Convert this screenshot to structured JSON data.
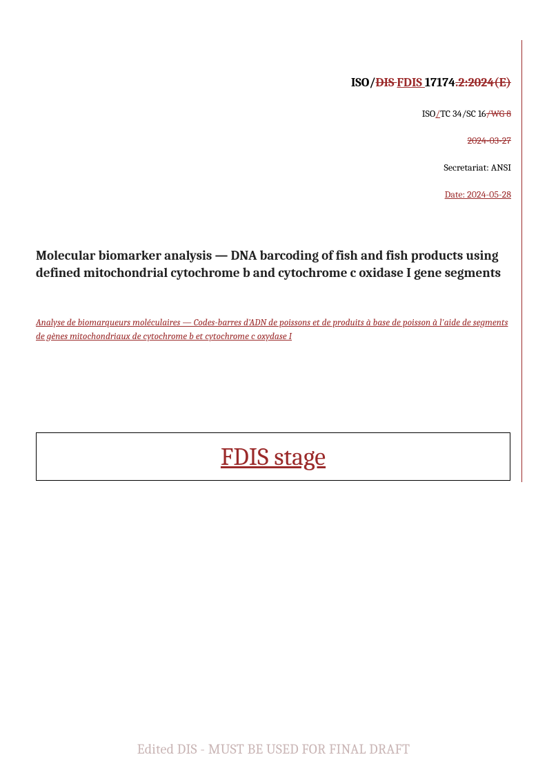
{
  "header": {
    "prefix": "ISO/",
    "struck_code": "DIS ",
    "ins_code": "FDIS ",
    "number": "17174",
    "struck_suffix": ".2:2024(E)",
    "committee_prefix": "ISO",
    "committee_slash": "/",
    "committee_main": "TC 34/SC 16",
    "committee_struck": "/WG 8",
    "struck_date": "2024-03-27",
    "secretariat": "Secretariat: ANSI",
    "date_label": "Date: 2024-05-28"
  },
  "title_en": "Molecular biomarker analysis — DNA barcoding of fish and fish products using defined mitochondrial cytochrome b and cytochrome c oxidase I gene segments",
  "title_fr": "Analyse de biomarqueurs moléculaires — Codes-barres d'ADN de poissons et de produits à base de poisson à l'aide de segments de gènes mitochondriaux de cytochrome b et cytochrome c oxydase I",
  "stage": "FDIS stage",
  "footer": "Edited DIS - MUST BE USED FOR FINAL DRAFT",
  "colors": {
    "revision_red": "#9b2a2a",
    "footer_grey": "#c9b5b5",
    "text": "#000000",
    "background": "#ffffff"
  }
}
